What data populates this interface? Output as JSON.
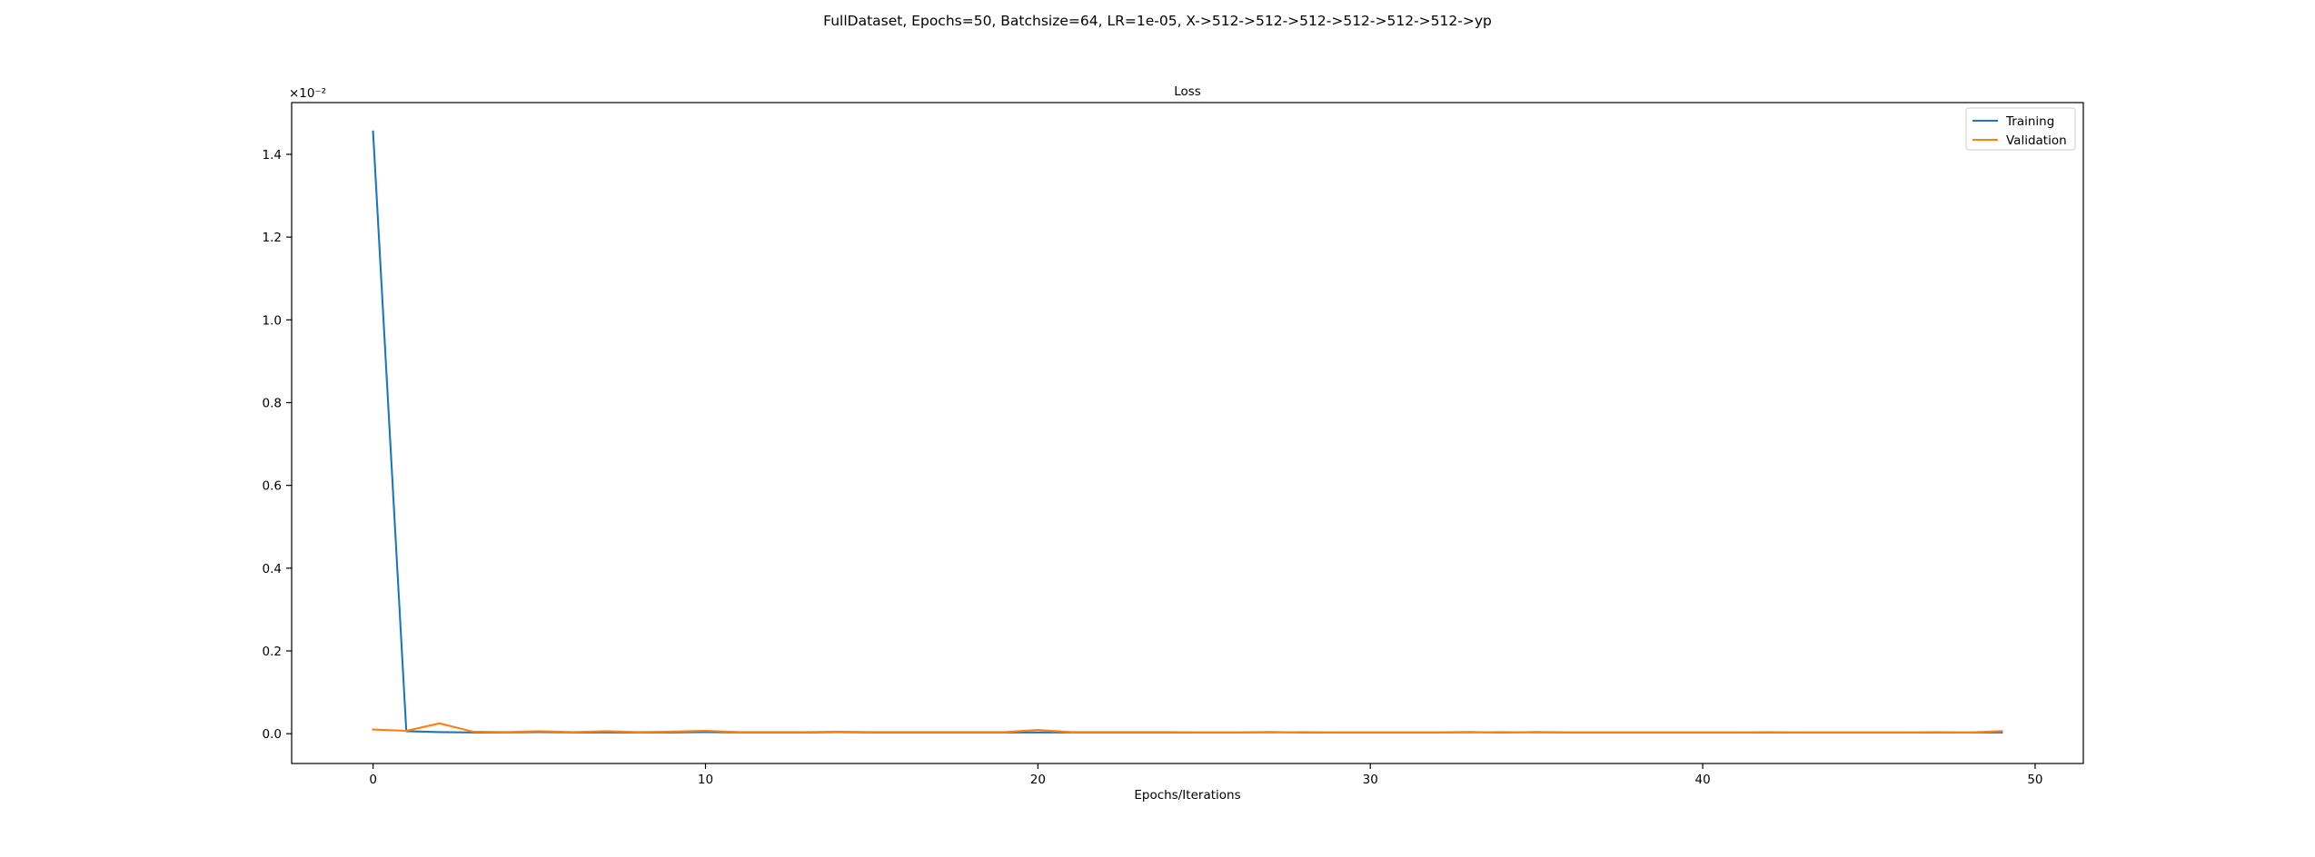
{
  "figure": {
    "suptitle": "FullDataset, Epochs=50, Batchsize=64, LR=1e-05, X->512->512->512->512->512->512->yp"
  },
  "chart_data": {
    "type": "line",
    "title": "Loss",
    "xlabel": "Epochs/Iterations",
    "ylabel": "",
    "y_offset_label": "×10⁻²",
    "y_scale_multiplier": 0.01,
    "xlim": [
      -2.45,
      51.45
    ],
    "ylim": [
      -0.072,
      1.525
    ],
    "x_ticks": [
      0,
      10,
      20,
      30,
      40,
      50
    ],
    "x_tick_labels": [
      "0",
      "10",
      "20",
      "30",
      "40",
      "50"
    ],
    "y_ticks": [
      0.0,
      0.2,
      0.4,
      0.6,
      0.8,
      1.0,
      1.2,
      1.4
    ],
    "y_tick_labels": [
      "0.0",
      "0.2",
      "0.4",
      "0.6",
      "0.8",
      "1.0",
      "1.2",
      "1.4"
    ],
    "grid": false,
    "legend_position": "top-right",
    "x": [
      0,
      1,
      2,
      3,
      4,
      5,
      6,
      7,
      8,
      9,
      10,
      11,
      12,
      13,
      14,
      15,
      16,
      17,
      18,
      19,
      20,
      21,
      22,
      23,
      24,
      25,
      26,
      27,
      28,
      29,
      30,
      31,
      32,
      33,
      34,
      35,
      36,
      37,
      38,
      39,
      40,
      41,
      42,
      43,
      44,
      45,
      46,
      47,
      48,
      49
    ],
    "series": [
      {
        "name": "Training",
        "color": "#1f77b4",
        "values": [
          1.455,
          0.006,
          0.004,
          0.003,
          0.003,
          0.004,
          0.003,
          0.003,
          0.003,
          0.003,
          0.004,
          0.003,
          0.003,
          0.003,
          0.004,
          0.003,
          0.003,
          0.003,
          0.003,
          0.003,
          0.003,
          0.003,
          0.003,
          0.003,
          0.003,
          0.003,
          0.003,
          0.004,
          0.003,
          0.003,
          0.003,
          0.003,
          0.003,
          0.004,
          0.003,
          0.004,
          0.003,
          0.003,
          0.003,
          0.003,
          0.003,
          0.003,
          0.003,
          0.003,
          0.003,
          0.003,
          0.003,
          0.003,
          0.003,
          0.003
        ]
      },
      {
        "name": "Validation",
        "color": "#ff7f0e",
        "values": [
          0.01,
          0.007,
          0.025,
          0.005,
          0.004,
          0.006,
          0.004,
          0.006,
          0.004,
          0.005,
          0.007,
          0.004,
          0.004,
          0.004,
          0.005,
          0.004,
          0.004,
          0.004,
          0.004,
          0.004,
          0.009,
          0.004,
          0.004,
          0.004,
          0.004,
          0.003,
          0.003,
          0.003,
          0.004,
          0.003,
          0.003,
          0.003,
          0.003,
          0.003,
          0.004,
          0.003,
          0.003,
          0.003,
          0.003,
          0.003,
          0.003,
          0.003,
          0.004,
          0.003,
          0.003,
          0.003,
          0.003,
          0.004,
          0.003,
          0.006
        ]
      }
    ]
  }
}
